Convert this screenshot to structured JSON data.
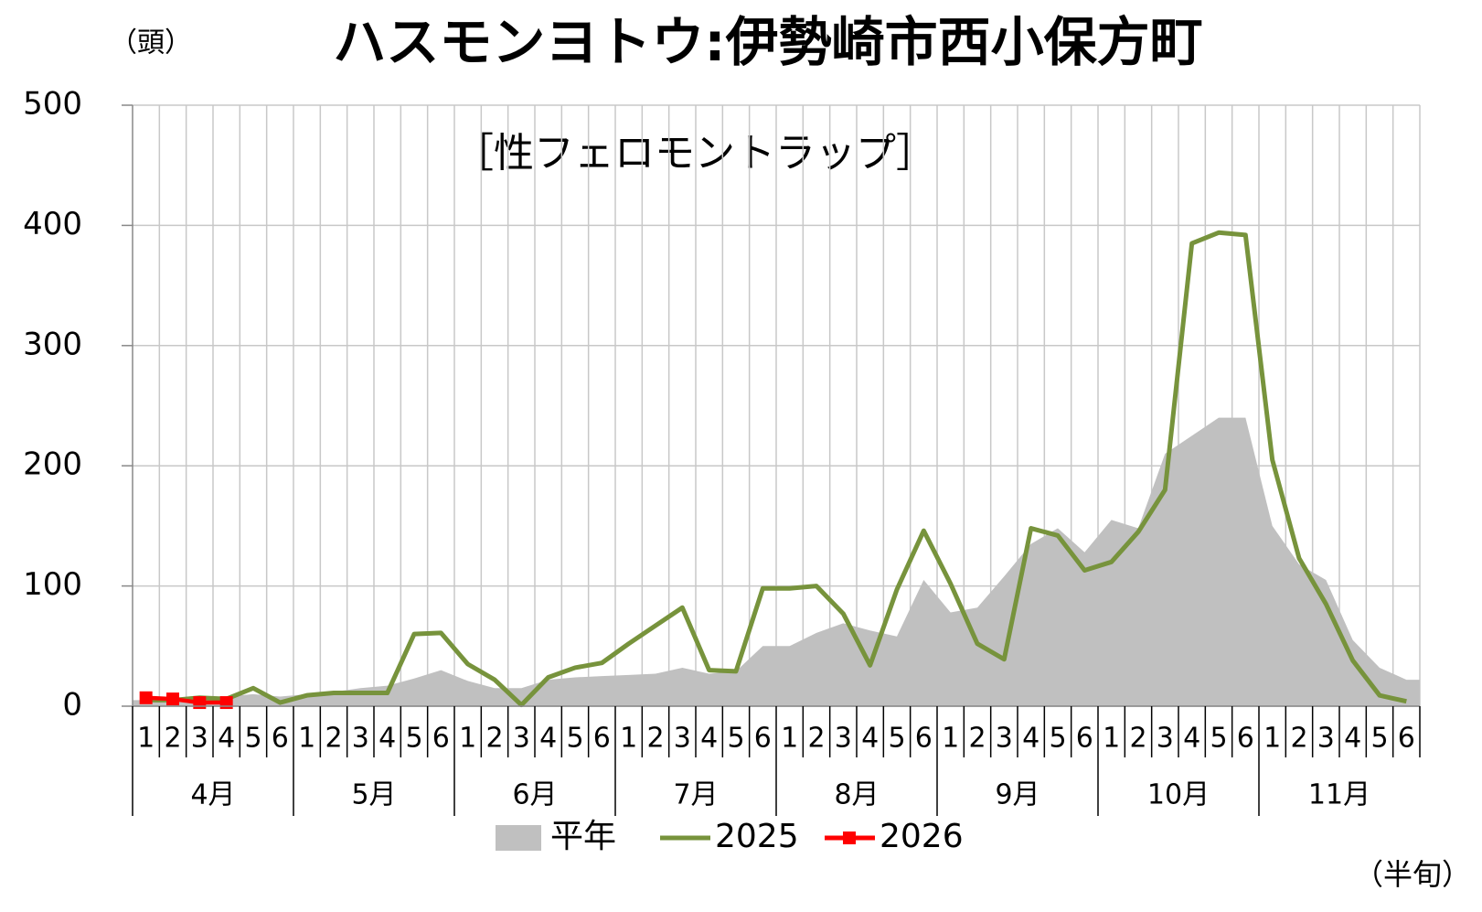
{
  "chart_data": {
    "type": "line",
    "title": "ハスモンヨトウ:伊勢崎市西小保方町",
    "subtitle": "［性フェロモントラップ］",
    "y_unit": "（頭）",
    "x_unit": "（半旬）",
    "categories": [
      "1",
      "2",
      "3",
      "4",
      "5",
      "6",
      "1",
      "2",
      "3",
      "4",
      "5",
      "6",
      "1",
      "2",
      "3",
      "4",
      "5",
      "6",
      "1",
      "2",
      "3",
      "4",
      "5",
      "6",
      "1",
      "2",
      "3",
      "4",
      "5",
      "6",
      "1",
      "2",
      "3",
      "4",
      "5",
      "6",
      "1",
      "2",
      "3",
      "4",
      "5",
      "6",
      "1",
      "2",
      "3",
      "4",
      "5",
      "6"
    ],
    "month_labels": [
      "4月",
      "5月",
      "6月",
      "7月",
      "8月",
      "9月",
      "10月",
      "11月"
    ],
    "ylim": [
      0,
      500
    ],
    "yticks": [
      0,
      100,
      200,
      300,
      400,
      500
    ],
    "grid": true,
    "series": [
      {
        "name": "平年",
        "kind": "area",
        "color": "#c0c0c0",
        "values": [
          5,
          5,
          8,
          8,
          10,
          8,
          10,
          12,
          15,
          17,
          23,
          30,
          21,
          15,
          15,
          22,
          24,
          25,
          26,
          27,
          32,
          27,
          29,
          50,
          50,
          61,
          69,
          63,
          58,
          105,
          78,
          82,
          108,
          135,
          148,
          128,
          155,
          148,
          210,
          225,
          240,
          240,
          150,
          118,
          105,
          55,
          32,
          22
        ]
      },
      {
        "name": "2025",
        "kind": "line",
        "color": "#77933c",
        "values": [
          5,
          5,
          7,
          6,
          15,
          3,
          9,
          11,
          11,
          11,
          60,
          61,
          35,
          22,
          1,
          24,
          32,
          36,
          52,
          67,
          82,
          30,
          29,
          98,
          98,
          100,
          77,
          34,
          97,
          146,
          102,
          52,
          39,
          148,
          142,
          113,
          120,
          145,
          180,
          385,
          394,
          392,
          205,
          123,
          85,
          38,
          9,
          4
        ]
      },
      {
        "name": "2026",
        "kind": "marker-line",
        "color": "#ff0000",
        "values": [
          7,
          6,
          3,
          3,
          null,
          null,
          null,
          null,
          null,
          null,
          null,
          null,
          null,
          null,
          null,
          null,
          null,
          null,
          null,
          null,
          null,
          null,
          null,
          null,
          null,
          null,
          null,
          null,
          null,
          null,
          null,
          null,
          null,
          null,
          null,
          null,
          null,
          null,
          null,
          null,
          null,
          null,
          null,
          null,
          null,
          null,
          null,
          null
        ]
      }
    ]
  }
}
